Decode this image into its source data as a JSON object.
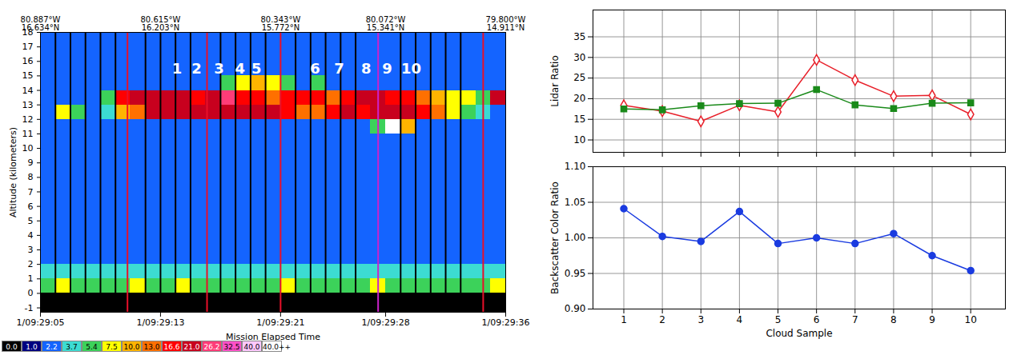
{
  "chart_data": [
    {
      "type": "heatmap",
      "xlabel": "Mission Elapsed Time",
      "ylabel": "Altitude (kilometers)",
      "xlim": [
        5,
        36
      ],
      "ylim": [
        -1.3,
        18
      ],
      "xticks": [
        {
          "value": 5,
          "label": "1/09:29:05"
        },
        {
          "value": 13,
          "label": "1/09:29:13"
        },
        {
          "value": 21,
          "label": "1/09:29:21"
        },
        {
          "value": 28,
          "label": "1/09:29:28"
        },
        {
          "value": 36,
          "label": "1/09:29:36"
        }
      ],
      "x2ticks": [
        {
          "value": 5,
          "label": "80.887°W\n16.634°N"
        },
        {
          "value": 13,
          "label": "80.615°W\n16.203°N"
        },
        {
          "value": 21,
          "label": "80.343°W\n15.772°N"
        },
        {
          "value": 28,
          "label": "80.072°W\n15.341°N"
        },
        {
          "value": 36,
          "label": "79.800°W\n14.911°N"
        }
      ],
      "yticks": [
        -1,
        0,
        1,
        2,
        3,
        4,
        5,
        6,
        7,
        8,
        9,
        10,
        11,
        12,
        13,
        14,
        15,
        16,
        17,
        18
      ],
      "time_bins": [
        5,
        6,
        7,
        8,
        9,
        10,
        11,
        12,
        13,
        14,
        15,
        16,
        17,
        18,
        19,
        20,
        21,
        22,
        23,
        24,
        25,
        26,
        27,
        28,
        29,
        30,
        31,
        32,
        33,
        34,
        35,
        36
      ],
      "altitude_bins": [
        -1.3,
        0,
        1,
        2,
        3,
        4,
        5,
        6,
        7,
        8,
        9,
        10,
        11,
        12,
        13,
        14,
        15,
        16,
        17,
        18
      ],
      "cells": [
        [
          -0.2,
          -0.2,
          -0.2,
          -0.2,
          -0.2,
          -0.2,
          -0.2,
          -0.2,
          -0.2,
          -0.2,
          -0.2,
          -0.2,
          -0.2,
          -0.2,
          -0.2,
          -0.2,
          -0.2,
          -0.2,
          -0.2,
          -0.2,
          -0.2,
          -0.2,
          -0.2,
          -0.2,
          -0.2,
          -0.2,
          -0.2,
          -0.2,
          -0.2,
          -0.2,
          -0.2
        ],
        [
          5,
          7,
          5,
          5,
          5,
          5,
          7,
          5,
          5,
          7,
          5,
          5,
          5,
          5,
          5,
          5,
          7,
          5,
          5,
          5,
          5,
          5,
          7,
          5,
          5,
          5,
          5,
          5,
          5,
          5,
          7
        ],
        [
          3.5,
          3.5,
          3.5,
          3.5,
          3.5,
          3.5,
          3.5,
          3.5,
          3.5,
          3.5,
          3.5,
          3.5,
          3.5,
          3.5,
          3.5,
          3.5,
          3.5,
          3.5,
          3.5,
          3.5,
          3.5,
          3.5,
          3.5,
          3.5,
          3.5,
          3.5,
          3.5,
          3.5,
          3.5,
          3.5,
          3.5
        ],
        [
          1.8,
          1.8,
          1.8,
          1.8,
          1.8,
          1.8,
          1.8,
          1.8,
          1.8,
          1.8,
          1.8,
          1.8,
          1.8,
          1.8,
          1.8,
          1.8,
          1.8,
          1.8,
          1.8,
          1.8,
          1.8,
          1.8,
          1.8,
          1.8,
          1.8,
          1.8,
          1.8,
          1.8,
          1.8,
          1.8,
          1.8
        ],
        [
          1.8,
          1.8,
          1.8,
          1.8,
          1.8,
          1.8,
          1.8,
          1.8,
          1.8,
          1.8,
          1.8,
          1.8,
          1.8,
          1.8,
          1.8,
          1.8,
          1.8,
          1.8,
          1.8,
          1.8,
          1.8,
          1.8,
          1.8,
          1.8,
          1.8,
          1.8,
          1.8,
          1.8,
          1.8,
          1.8,
          1.8
        ],
        [
          1.8,
          1.8,
          1.8,
          1.8,
          1.8,
          1.8,
          1.8,
          1.8,
          1.8,
          1.8,
          1.8,
          1.8,
          1.8,
          1.8,
          1.8,
          1.8,
          1.8,
          1.8,
          1.8,
          1.8,
          1.8,
          1.8,
          1.8,
          1.8,
          1.8,
          1.8,
          1.8,
          1.8,
          1.8,
          1.8,
          1.8
        ],
        [
          1.8,
          1.8,
          1.8,
          1.8,
          1.8,
          1.8,
          1.8,
          1.8,
          1.8,
          1.8,
          1.8,
          1.8,
          1.8,
          1.8,
          1.8,
          1.8,
          1.8,
          1.8,
          1.8,
          1.8,
          1.8,
          1.8,
          1.8,
          1.8,
          1.8,
          1.8,
          1.8,
          1.8,
          1.8,
          1.8,
          1.8
        ],
        [
          1.8,
          1.8,
          1.8,
          1.8,
          1.8,
          1.8,
          1.8,
          1.8,
          1.8,
          1.8,
          1.8,
          1.8,
          1.8,
          1.8,
          1.8,
          1.8,
          1.8,
          1.8,
          1.8,
          1.8,
          1.8,
          1.8,
          1.8,
          1.8,
          1.8,
          1.8,
          1.8,
          1.8,
          1.8,
          1.8,
          1.8
        ],
        [
          1.8,
          1.8,
          1.8,
          1.8,
          1.8,
          1.8,
          1.8,
          1.8,
          1.8,
          1.8,
          1.8,
          1.8,
          1.8,
          1.8,
          1.8,
          1.8,
          1.8,
          1.8,
          1.8,
          1.8,
          1.8,
          1.8,
          1.8,
          1.8,
          1.8,
          1.8,
          1.8,
          1.8,
          1.8,
          1.8,
          1.8
        ],
        [
          1.8,
          1.8,
          1.8,
          1.8,
          1.8,
          1.8,
          1.8,
          1.8,
          1.8,
          1.8,
          1.8,
          1.8,
          1.8,
          1.8,
          1.8,
          1.8,
          1.8,
          1.8,
          1.8,
          1.8,
          1.8,
          1.8,
          1.8,
          1.8,
          1.8,
          1.8,
          1.8,
          1.8,
          1.8,
          1.8,
          1.8
        ],
        [
          1.8,
          1.8,
          1.8,
          1.8,
          1.8,
          1.8,
          1.8,
          1.8,
          1.8,
          1.8,
          1.8,
          1.8,
          1.8,
          1.8,
          1.8,
          1.8,
          1.8,
          1.8,
          1.8,
          1.8,
          1.8,
          1.8,
          1.8,
          1.8,
          1.8,
          1.8,
          1.8,
          1.8,
          1.8,
          1.8,
          1.8
        ],
        [
          1.8,
          1.8,
          1.8,
          1.8,
          1.8,
          1.8,
          1.8,
          1.8,
          1.8,
          1.8,
          1.8,
          1.8,
          1.8,
          1.8,
          1.8,
          1.8,
          1.8,
          1.8,
          1.8,
          1.8,
          1.8,
          1.8,
          1.8,
          1.8,
          1.8,
          1.8,
          1.8,
          1.8,
          1.8,
          1.8,
          1.8
        ],
        [
          1.8,
          1.8,
          1.8,
          1.8,
          1.8,
          1.8,
          1.8,
          1.8,
          1.8,
          1.8,
          1.8,
          1.8,
          1.8,
          1.8,
          1.8,
          1.8,
          1.8,
          1.8,
          1.8,
          1.8,
          1.8,
          1.8,
          5,
          45,
          8,
          1.8,
          1.8,
          1.8,
          1.8,
          1.8,
          1.8
        ],
        [
          1.8,
          6,
          4.5,
          1.8,
          3,
          8,
          12,
          17,
          18,
          17,
          20,
          18,
          17,
          18,
          20,
          17,
          14,
          12,
          11,
          14,
          17,
          16,
          18,
          20,
          17,
          14,
          10,
          6,
          4,
          3,
          1.8
        ],
        [
          1.8,
          1.8,
          1.8,
          1.8,
          4,
          14,
          17,
          18,
          20,
          17,
          15,
          18,
          22,
          16,
          13,
          11,
          14,
          16,
          13,
          11,
          14,
          17,
          18,
          16,
          14,
          11,
          8,
          7,
          6,
          5,
          17
        ],
        [
          1.8,
          1.8,
          1.8,
          1.8,
          1.8,
          1.8,
          1.8,
          1.8,
          1.8,
          1.8,
          1.8,
          1.8,
          4.5,
          7,
          9,
          6,
          4.5,
          1.8,
          4.5,
          1.8,
          1.8,
          1.8,
          1.8,
          1.8,
          1.8,
          1.8,
          1.8,
          1.8,
          1.8,
          1.8,
          1.8
        ],
        [
          1.8,
          1.8,
          1.8,
          1.8,
          1.8,
          1.8,
          1.8,
          1.8,
          1.8,
          1.8,
          1.8,
          1.8,
          1.8,
          1.8,
          1.8,
          1.8,
          1.8,
          1.8,
          1.8,
          1.8,
          1.8,
          1.8,
          1.8,
          1.8,
          1.8,
          1.8,
          1.8,
          1.8,
          1.8,
          1.8,
          1.8
        ],
        [
          1.8,
          1.8,
          1.8,
          1.8,
          1.8,
          1.8,
          1.8,
          1.8,
          1.8,
          1.8,
          1.8,
          1.8,
          1.8,
          1.8,
          1.8,
          1.8,
          1.8,
          1.8,
          1.8,
          1.8,
          1.8,
          1.8,
          1.8,
          1.8,
          1.8,
          1.8,
          1.8,
          1.8,
          1.8,
          1.8,
          1.8
        ],
        [
          1.8,
          1.8,
          1.8,
          1.8,
          1.8,
          1.8,
          1.8,
          1.8,
          1.8,
          1.8,
          1.8,
          1.8,
          1.8,
          1.8,
          1.8,
          1.8,
          1.8,
          1.8,
          1.8,
          1.8,
          1.8,
          1.8,
          1.8,
          1.8,
          1.8,
          1.8,
          1.8,
          1.8,
          1.8,
          1.8,
          1.8
        ]
      ],
      "color_bar": {
        "ticks": [
          {
            "value": 0,
            "label": "0.0"
          },
          {
            "value": 1,
            "label": "1.0"
          },
          {
            "value": 2.2,
            "label": "2.2"
          },
          {
            "value": 3.7,
            "label": "3.7"
          },
          {
            "value": 5.4,
            "label": "5.4"
          },
          {
            "value": 7.5,
            "label": "7.5"
          },
          {
            "value": 10,
            "label": "10.0"
          },
          {
            "value": 13,
            "label": "13.0"
          },
          {
            "value": 16.6,
            "label": "16.6"
          },
          {
            "value": 21,
            "label": "21.0"
          },
          {
            "value": 26.2,
            "label": "26.2"
          },
          {
            "value": 32.5,
            "label": "32.5"
          },
          {
            "value": 40,
            "label": "40.0"
          }
        ],
        "over_label": "40.0++",
        "colors": [
          "#000000",
          "#000080",
          "#1464ff",
          "#3cdcd2",
          "#3cd25a",
          "#ffff00",
          "#ffb400",
          "#ff7000",
          "#ff0000",
          "#c8001e",
          "#ff3c78",
          "#ff50c8",
          "#ffc8ff",
          "#ffffff"
        ]
      },
      "markers": [
        {
          "color": "#000000",
          "x": [
            6,
            7,
            8,
            9,
            10,
            12,
            13,
            14,
            15,
            17,
            18,
            19,
            20,
            22,
            23,
            24,
            25,
            26,
            29,
            30,
            31,
            32,
            33
          ]
        },
        {
          "color": "#e8102a",
          "x": [
            10.8,
            16.1,
            21,
            34.5
          ]
        },
        {
          "color": "#cc22cc",
          "x": [
            27.5
          ]
        }
      ],
      "annotations": [
        {
          "text": "1",
          "x": 14.1,
          "y": 15.5
        },
        {
          "text": "2",
          "x": 15.4,
          "y": 15.5
        },
        {
          "text": "3",
          "x": 16.9,
          "y": 15.5
        },
        {
          "text": "4",
          "x": 18.3,
          "y": 15.5
        },
        {
          "text": "5",
          "x": 19.4,
          "y": 15.5
        },
        {
          "text": "6",
          "x": 23.3,
          "y": 15.5
        },
        {
          "text": "7",
          "x": 24.9,
          "y": 15.5
        },
        {
          "text": "8",
          "x": 26.7,
          "y": 15.5
        },
        {
          "text": "9",
          "x": 28.1,
          "y": 15.5
        },
        {
          "text": "10",
          "x": 29.7,
          "y": 15.5
        }
      ]
    },
    {
      "type": "line",
      "ylabel": "Lidar Ratio",
      "x": [
        1,
        2,
        3,
        4,
        5,
        6,
        7,
        8,
        9,
        10
      ],
      "xlim": [
        0.2,
        10.9
      ],
      "xticks": [
        1,
        2,
        3,
        4,
        5,
        6,
        7,
        8,
        9,
        10
      ],
      "ylim": [
        7,
        41.5
      ],
      "yticks": [
        10,
        15,
        20,
        25,
        30,
        35
      ],
      "grid": true,
      "tick_labels": "y",
      "series": [
        {
          "color": "#e8202a",
          "marker": "diamond-open",
          "values": [
            18.4,
            17.0,
            14.5,
            18.4,
            16.8,
            29.4,
            24.5,
            20.6,
            20.8,
            16.2
          ]
        },
        {
          "color": "#1a8a1a",
          "marker": "square",
          "values": [
            17.5,
            17.3,
            18.3,
            18.8,
            18.9,
            22.2,
            18.5,
            17.6,
            18.9,
            19.0
          ]
        }
      ]
    },
    {
      "type": "line",
      "xlabel": "Cloud Sample",
      "ylabel": "Backscatter Color Ratio",
      "x": [
        1,
        2,
        3,
        4,
        5,
        6,
        7,
        8,
        9,
        10
      ],
      "xlim": [
        0.2,
        10.9
      ],
      "xticks": [
        1,
        2,
        3,
        4,
        5,
        6,
        7,
        8,
        9,
        10
      ],
      "ylim": [
        0.9,
        1.1
      ],
      "yticks": [
        {
          "value": 0.9,
          "label": "0.90"
        },
        {
          "value": 0.95,
          "label": "0.95"
        },
        {
          "value": 1,
          "label": "1.00"
        },
        {
          "value": 1.05,
          "label": "1.05"
        },
        {
          "value": 1.1,
          "label": "1.10"
        }
      ],
      "grid": true,
      "series": [
        {
          "color": "#1a3be0",
          "marker": "circle",
          "values": [
            1.041,
            1.002,
            0.995,
            1.037,
            0.992,
            1.0,
            0.992,
            1.006,
            0.975,
            0.954
          ]
        }
      ]
    }
  ]
}
